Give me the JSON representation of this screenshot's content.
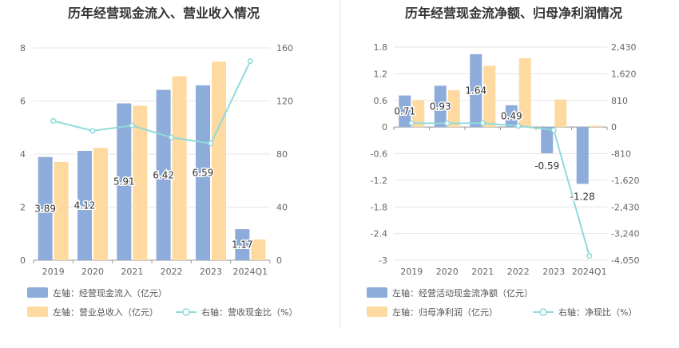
{
  "colors": {
    "bar1": "#8eacd9",
    "bar2": "#fedaa0",
    "line": "#8fdada",
    "grid": "#e6e6e6",
    "axis": "#999999",
    "divider": "#e3e3e3"
  },
  "chart_data": [
    {
      "type": "bar",
      "title": "历年经营现金流入、营业收入情况",
      "categories": [
        "2019",
        "2020",
        "2021",
        "2022",
        "2023",
        "2024Q1"
      ],
      "y_left": {
        "ticks": [
          "0",
          "2",
          "4",
          "6",
          "8"
        ],
        "min": 0,
        "max": 8
      },
      "y_right": {
        "ticks": [
          "0",
          "40",
          "80",
          "120",
          "160"
        ],
        "min": 0,
        "max": 160
      },
      "series": [
        {
          "name": "左轴：经营现金流入（亿元）",
          "kind": "bar",
          "axis": "left",
          "values": [
            3.89,
            4.12,
            5.91,
            6.42,
            6.59,
            1.17
          ],
          "labels": [
            "3.89",
            "4.12",
            "5.91",
            "6.42",
            "6.59",
            "1.17"
          ]
        },
        {
          "name": "左轴：营业总收入（亿元）",
          "kind": "bar",
          "axis": "left",
          "values": [
            3.7,
            4.23,
            5.82,
            6.93,
            7.48,
            0.78
          ]
        },
        {
          "name": "右轴：营收现金比（%）",
          "kind": "line",
          "axis": "right",
          "values": [
            105,
            97.5,
            101.5,
            92.5,
            88,
            150
          ]
        }
      ]
    },
    {
      "type": "bar",
      "title": "历年经营现金流净额、归母净利润情况",
      "categories": [
        "2019",
        "2020",
        "2021",
        "2022",
        "2023",
        "2024Q1"
      ],
      "y_left": {
        "ticks": [
          "1.8",
          "1.2",
          "0.6",
          "0",
          "-0.6",
          "-1.2",
          "-1.8",
          "-2.4",
          "-3"
        ],
        "min": -3,
        "max": 1.8
      },
      "y_right": {
        "ticks": [
          "2,430",
          "1,620",
          "810",
          "0",
          "-810",
          "-1,620",
          "-2,430",
          "-3,240",
          "-4,050"
        ],
        "min": -4050,
        "max": 2430
      },
      "series": [
        {
          "name": "左轴：经营活动现金流净额（亿元）",
          "kind": "bar",
          "axis": "left",
          "values": [
            0.71,
            0.93,
            1.64,
            0.49,
            -0.59,
            -1.28
          ],
          "labels": [
            "0.71",
            "0.93",
            "1.64",
            "0.49",
            "-0.59",
            "-1.28"
          ]
        },
        {
          "name": "左轴：归母净利润（亿元）",
          "kind": "bar",
          "axis": "left",
          "values": [
            0.6,
            0.83,
            1.38,
            1.55,
            0.62,
            0.03
          ]
        },
        {
          "name": "右轴：净现比（%）",
          "kind": "line",
          "axis": "right",
          "values": [
            118,
            112,
            119,
            32,
            -95,
            -3920
          ]
        }
      ]
    }
  ]
}
